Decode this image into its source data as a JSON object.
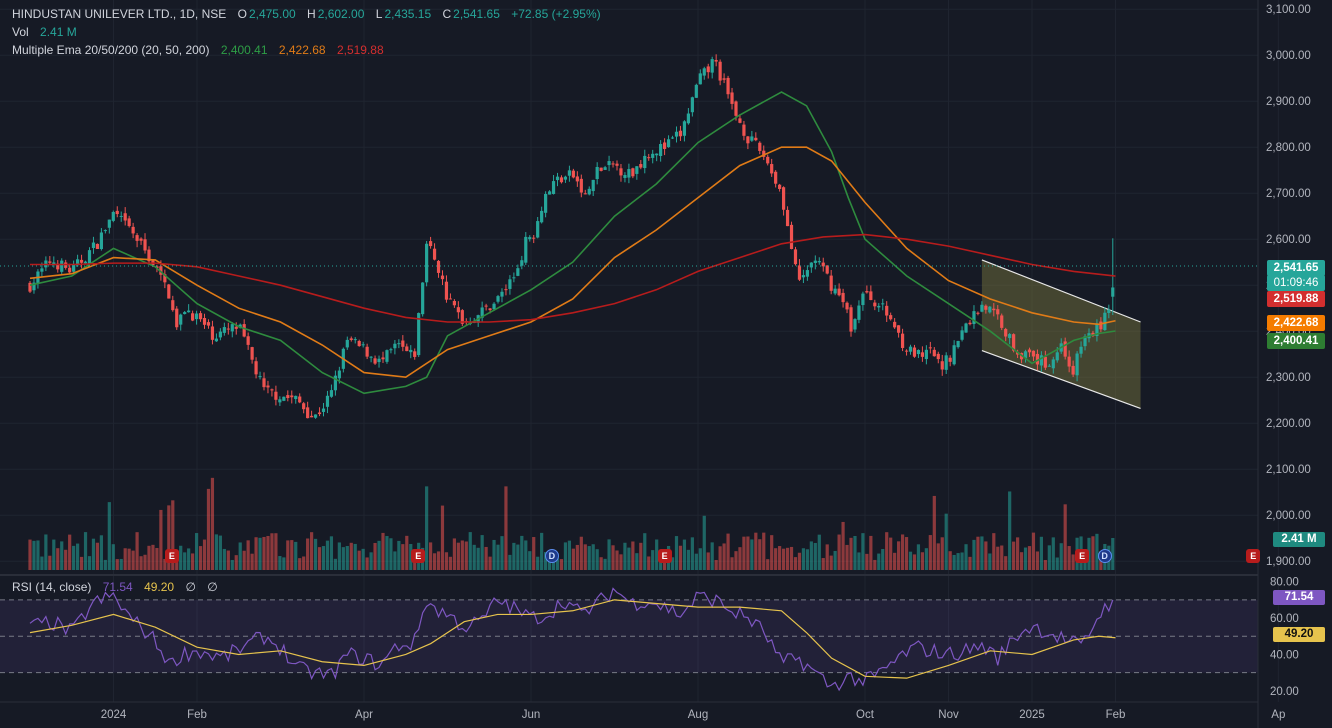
{
  "header": {
    "symbol": "HINDUSTAN UNILEVER LTD., 1D, NSE",
    "o_label": "O",
    "o_value": "2,475.00",
    "h_label": "H",
    "h_value": "2,602.00",
    "l_label": "L",
    "l_value": "2,435.15",
    "c_label": "C",
    "c_value": "2,541.65",
    "change": "+72.85 (+2.95%)",
    "vol_label": "Vol",
    "vol_value": "2.41 M",
    "ema_label": "Multiple Ema 20/50/200 (20, 50, 200)",
    "ema20_value": "2,400.41",
    "ema50_value": "2,422.68",
    "ema200_value": "2,519.88"
  },
  "rsi_header": {
    "label": "RSI (14, close)",
    "value": "71.54",
    "ma_value": "49.20",
    "extra1": "∅",
    "extra2": "∅"
  },
  "price_tags": {
    "last": "2,541.65",
    "countdown": "01:09:46",
    "ema200": "2,519.88",
    "ema50": "2,422.68",
    "ema20": "2,400.41",
    "volume": "2.41 M",
    "rsi": "71.54",
    "rsi_ma": "49.20"
  },
  "colors": {
    "background": "#161a25",
    "up": "#26a69a",
    "down": "#ef5350",
    "ema20": "#2e8b3e",
    "ema50": "#e07b17",
    "ema200": "#b71c1c",
    "rsi": "#7e57c2",
    "rsi_ma": "#e6c34d",
    "channel_fill": "#6b6a3a"
  },
  "event_badges": [
    {
      "letter": "E",
      "kind": "earnings",
      "month_pos": 1.7
    },
    {
      "letter": "E",
      "kind": "earnings",
      "month_pos": 4.65
    },
    {
      "letter": "D",
      "kind": "dividend",
      "month_pos": 6.25
    },
    {
      "letter": "E",
      "kind": "earnings",
      "month_pos": 7.6
    },
    {
      "letter": "E",
      "kind": "earnings",
      "month_pos": 12.6
    },
    {
      "letter": "D",
      "kind": "dividend",
      "month_pos": 12.87
    },
    {
      "letter": "E",
      "kind": "earnings",
      "month_pos": 14.65
    }
  ],
  "chart_data": {
    "type": "line",
    "title": "HINDUSTAN UNILEVER LTD., 1D, NSE",
    "x_axis": {
      "tick_labels": [
        "2024",
        "Feb",
        "Apr",
        "Jun",
        "Aug",
        "Oct",
        "Nov",
        "2025",
        "Feb",
        "Ap"
      ],
      "tick_month_pos": [
        1,
        2,
        4,
        6,
        8,
        10,
        11,
        12,
        13,
        14.95
      ]
    },
    "y_axis_price": {
      "range": [
        1870,
        3120
      ],
      "ticks": [
        "3,100.00",
        "3,000.00",
        "2,900.00",
        "2,800.00",
        "2,700.00",
        "2,600.00",
        "2,500.00",
        "2,400.00",
        "2,300.00",
        "2,200.00",
        "2,100.00",
        "2,000.00",
        "1,900.00"
      ],
      "tick_values": [
        3100,
        3000,
        2900,
        2800,
        2700,
        2600,
        2500,
        2400,
        2300,
        2200,
        2100,
        2000,
        1900
      ]
    },
    "y_axis_rsi": {
      "range": [
        15,
        82
      ],
      "ticks": [
        "80.00",
        "60.00",
        "40.00",
        "20.00"
      ],
      "tick_values": [
        80,
        60,
        40,
        20
      ],
      "bands": [
        70,
        50,
        30
      ]
    },
    "series": [
      {
        "name": "Price (close)",
        "x": [
          0,
          0.25,
          0.5,
          0.8,
          1.0,
          1.2,
          1.45,
          1.7,
          1.75,
          1.85,
          2.0,
          2.2,
          2.5,
          2.8,
          3.0,
          3.2,
          3.4,
          3.6,
          3.8,
          4.0,
          4.2,
          4.4,
          4.6,
          4.75,
          4.85,
          5.0,
          5.2,
          5.4,
          5.6,
          5.8,
          5.95,
          6.05,
          6.15,
          6.3,
          6.5,
          6.65,
          6.8,
          7.0,
          7.2,
          7.4,
          7.6,
          7.8,
          8.0,
          8.2,
          8.4,
          8.6,
          8.8,
          9.0,
          9.2,
          9.4,
          9.6,
          9.75,
          9.85,
          9.95,
          10.1,
          10.3,
          10.5,
          10.7,
          10.8,
          10.9,
          11.0,
          11.2,
          11.4,
          11.6,
          11.8,
          12.0,
          12.2,
          12.35,
          12.5,
          12.6,
          12.75,
          12.85,
          12.95,
          13.0
        ],
        "y": [
          2500,
          2555,
          2530,
          2590,
          2655,
          2620,
          2555,
          2470,
          2400,
          2450,
          2430,
          2390,
          2410,
          2270,
          2260,
          2250,
          2210,
          2260,
          2380,
          2360,
          2330,
          2370,
          2340,
          2590,
          2560,
          2470,
          2420,
          2440,
          2470,
          2520,
          2600,
          2620,
          2690,
          2730,
          2740,
          2690,
          2750,
          2760,
          2740,
          2790,
          2800,
          2830,
          2940,
          2990,
          2890,
          2820,
          2780,
          2700,
          2500,
          2560,
          2500,
          2460,
          2400,
          2480,
          2470,
          2430,
          2360,
          2340,
          2360,
          2320,
          2340,
          2410,
          2460,
          2430,
          2360,
          2340,
          2330,
          2370,
          2310,
          2380,
          2400,
          2420,
          2470,
          2541.65
        ]
      },
      {
        "name": "EMA 20",
        "x": [
          0,
          0.5,
          1.0,
          1.5,
          2.0,
          2.5,
          3.0,
          3.5,
          4.0,
          4.5,
          4.75,
          5.0,
          5.5,
          6.0,
          6.5,
          7.0,
          7.5,
          8.0,
          8.5,
          9.0,
          9.3,
          9.6,
          9.8,
          10.0,
          10.5,
          11.0,
          11.5,
          12.0,
          12.5,
          12.8,
          13.0
        ],
        "y": [
          2500,
          2520,
          2580,
          2540,
          2460,
          2410,
          2380,
          2310,
          2265,
          2280,
          2300,
          2390,
          2440,
          2490,
          2550,
          2650,
          2720,
          2810,
          2870,
          2920,
          2890,
          2790,
          2690,
          2600,
          2520,
          2460,
          2400,
          2330,
          2380,
          2395,
          2400.41
        ]
      },
      {
        "name": "EMA 50",
        "x": [
          0,
          0.5,
          1.0,
          1.5,
          2.0,
          2.5,
          3.0,
          3.5,
          4.0,
          4.5,
          5.0,
          5.5,
          6.0,
          6.5,
          7.0,
          7.5,
          8.0,
          8.5,
          9.0,
          9.3,
          9.6,
          10.0,
          10.5,
          11.0,
          11.5,
          12.0,
          12.5,
          12.8,
          13.0
        ],
        "y": [
          2515,
          2525,
          2560,
          2555,
          2500,
          2450,
          2420,
          2370,
          2310,
          2300,
          2360,
          2390,
          2420,
          2470,
          2560,
          2620,
          2690,
          2760,
          2800,
          2800,
          2770,
          2680,
          2580,
          2510,
          2470,
          2440,
          2420,
          2415,
          2422.68
        ]
      },
      {
        "name": "EMA 200",
        "x": [
          0,
          0.5,
          1.0,
          1.5,
          2.0,
          2.5,
          3.0,
          3.5,
          4.0,
          4.5,
          5.0,
          5.5,
          6.0,
          6.5,
          7.0,
          7.5,
          8.0,
          8.5,
          9.0,
          9.5,
          10.0,
          10.5,
          11.0,
          11.5,
          12.0,
          12.5,
          13.0
        ],
        "y": [
          2545,
          2545,
          2548,
          2548,
          2540,
          2520,
          2500,
          2475,
          2450,
          2430,
          2420,
          2420,
          2425,
          2440,
          2460,
          2490,
          2530,
          2560,
          2590,
          2605,
          2610,
          2600,
          2585,
          2565,
          2545,
          2530,
          2519.88
        ]
      }
    ],
    "rsi_series": [
      {
        "name": "RSI",
        "x": [
          0,
          0.25,
          0.5,
          0.75,
          1.0,
          1.2,
          1.45,
          1.7,
          1.8,
          2.0,
          2.3,
          2.6,
          2.8,
          3.0,
          3.2,
          3.4,
          3.6,
          3.8,
          4.0,
          4.2,
          4.4,
          4.6,
          4.75,
          4.85,
          5.0,
          5.2,
          5.4,
          5.6,
          5.8,
          6.0,
          6.2,
          6.4,
          6.6,
          6.8,
          7.0,
          7.2,
          7.4,
          7.6,
          7.8,
          8.0,
          8.2,
          8.4,
          8.6,
          8.8,
          9.0,
          9.2,
          9.4,
          9.6,
          9.8,
          10.0,
          10.2,
          10.4,
          10.6,
          10.8,
          11.0,
          11.2,
          11.4,
          11.6,
          11.8,
          12.0,
          12.2,
          12.4,
          12.6,
          12.8,
          13.0
        ],
        "y": [
          55,
          58,
          52,
          68,
          72,
          60,
          50,
          34,
          40,
          42,
          38,
          45,
          50,
          44,
          32,
          30,
          28,
          40,
          38,
          34,
          45,
          46,
          70,
          65,
          62,
          55,
          58,
          70,
          65,
          60,
          62,
          70,
          62,
          68,
          76,
          68,
          70,
          66,
          62,
          72,
          70,
          64,
          60,
          52,
          35,
          38,
          30,
          22,
          28,
          25,
          30,
          38,
          44,
          42,
          40,
          42,
          45,
          38,
          50,
          56,
          52,
          48,
          44,
          62,
          71.54
        ]
      },
      {
        "name": "RSI-based MA",
        "x": [
          0,
          0.5,
          1.0,
          1.5,
          2.0,
          2.5,
          3.0,
          3.5,
          4.0,
          4.5,
          4.8,
          5.2,
          5.6,
          6.0,
          6.5,
          7.0,
          7.5,
          8.0,
          8.5,
          9.0,
          9.3,
          9.6,
          10.0,
          10.5,
          11.0,
          11.5,
          12.0,
          12.5,
          12.8,
          13.0
        ],
        "y": [
          52,
          56,
          62,
          55,
          44,
          40,
          42,
          36,
          34,
          40,
          46,
          58,
          62,
          62,
          64,
          70,
          68,
          66,
          66,
          64,
          52,
          38,
          28,
          27,
          34,
          42,
          40,
          48,
          50,
          49.2
        ]
      }
    ]
  }
}
